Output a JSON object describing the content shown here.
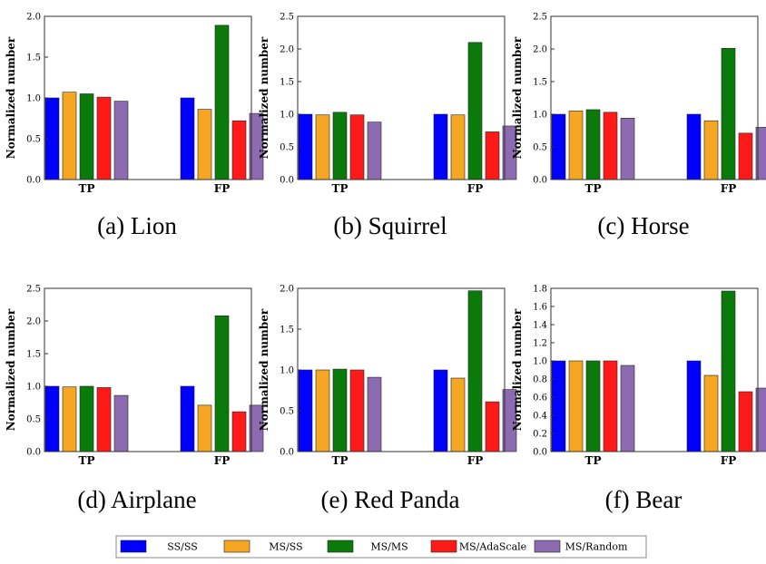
{
  "legend": {
    "items": [
      {
        "name": "SS/SS",
        "color": "#0000ff"
      },
      {
        "name": "MS/SS",
        "color": "#f5a623"
      },
      {
        "name": "MS/MS",
        "color": "#0a7a0a"
      },
      {
        "name": "MS/AdaScale",
        "color": "#ff1a1a"
      },
      {
        "name": "MS/Random",
        "color": "#8c6bb1"
      }
    ]
  },
  "chart_data": [
    {
      "type": "bar",
      "caption": "(a) Lion",
      "ylabel": "Normalized number",
      "categories": [
        "TP",
        "FP"
      ],
      "ylim": [
        0,
        2.0
      ],
      "yticks": [
        "0.0",
        "0.5",
        "1.0",
        "1.5",
        "2.0"
      ],
      "series": [
        {
          "name": "SS/SS",
          "values": [
            1.0,
            1.0
          ]
        },
        {
          "name": "MS/SS",
          "values": [
            1.07,
            0.86
          ]
        },
        {
          "name": "MS/MS",
          "values": [
            1.05,
            1.89
          ]
        },
        {
          "name": "MS/AdaScale",
          "values": [
            1.01,
            0.72
          ]
        },
        {
          "name": "MS/Random",
          "values": [
            0.96,
            0.81
          ]
        }
      ]
    },
    {
      "type": "bar",
      "caption": "(b) Squirrel",
      "ylabel": "Normalized number",
      "categories": [
        "TP",
        "FP"
      ],
      "ylim": [
        0,
        2.5
      ],
      "yticks": [
        "0.0",
        "0.5",
        "1.0",
        "1.5",
        "2.0",
        "2.5"
      ],
      "series": [
        {
          "name": "SS/SS",
          "values": [
            1.0,
            1.0
          ]
        },
        {
          "name": "MS/SS",
          "values": [
            0.99,
            0.99
          ]
        },
        {
          "name": "MS/MS",
          "values": [
            1.03,
            2.1
          ]
        },
        {
          "name": "MS/AdaScale",
          "values": [
            0.99,
            0.73
          ]
        },
        {
          "name": "MS/Random",
          "values": [
            0.88,
            0.82
          ]
        }
      ]
    },
    {
      "type": "bar",
      "caption": "(c) Horse",
      "ylabel": "Normalized number",
      "categories": [
        "TP",
        "FP"
      ],
      "ylim": [
        0,
        2.5
      ],
      "yticks": [
        "0.0",
        "0.5",
        "1.0",
        "1.5",
        "2.0",
        "2.5"
      ],
      "series": [
        {
          "name": "SS/SS",
          "values": [
            1.0,
            1.0
          ]
        },
        {
          "name": "MS/SS",
          "values": [
            1.05,
            0.9
          ]
        },
        {
          "name": "MS/MS",
          "values": [
            1.07,
            2.01
          ]
        },
        {
          "name": "MS/AdaScale",
          "values": [
            1.03,
            0.71
          ]
        },
        {
          "name": "MS/Random",
          "values": [
            0.94,
            0.8
          ]
        }
      ]
    },
    {
      "type": "bar",
      "caption": "(d) Airplane",
      "ylabel": "Normalized number",
      "categories": [
        "TP",
        "FP"
      ],
      "ylim": [
        0,
        2.5
      ],
      "yticks": [
        "0.0",
        "0.5",
        "1.0",
        "1.5",
        "2.0",
        "2.5"
      ],
      "series": [
        {
          "name": "SS/SS",
          "values": [
            1.0,
            1.0
          ]
        },
        {
          "name": "MS/SS",
          "values": [
            0.99,
            0.71
          ]
        },
        {
          "name": "MS/MS",
          "values": [
            1.0,
            2.08
          ]
        },
        {
          "name": "MS/AdaScale",
          "values": [
            0.98,
            0.61
          ]
        },
        {
          "name": "MS/Random",
          "values": [
            0.86,
            0.71
          ]
        }
      ]
    },
    {
      "type": "bar",
      "caption": "(e) Red Panda",
      "ylabel": "Normalized number",
      "categories": [
        "TP",
        "FP"
      ],
      "ylim": [
        0,
        2.0
      ],
      "yticks": [
        "0.0",
        "0.5",
        "1.0",
        "1.5",
        "2.0"
      ],
      "series": [
        {
          "name": "SS/SS",
          "values": [
            1.0,
            1.0
          ]
        },
        {
          "name": "MS/SS",
          "values": [
            1.0,
            0.9
          ]
        },
        {
          "name": "MS/MS",
          "values": [
            1.01,
            1.97
          ]
        },
        {
          "name": "MS/AdaScale",
          "values": [
            1.0,
            0.61
          ]
        },
        {
          "name": "MS/Random",
          "values": [
            0.91,
            0.76
          ]
        }
      ]
    },
    {
      "type": "bar",
      "caption": "(f) Bear",
      "ylabel": "Normalized number",
      "categories": [
        "TP",
        "FP"
      ],
      "ylim": [
        0,
        1.8
      ],
      "yticks": [
        "0.0",
        "0.2",
        "0.4",
        "0.6",
        "0.8",
        "1.0",
        "1.2",
        "1.4",
        "1.6",
        "1.8"
      ],
      "series": [
        {
          "name": "SS/SS",
          "values": [
            1.0,
            1.0
          ]
        },
        {
          "name": "MS/SS",
          "values": [
            1.0,
            0.84
          ]
        },
        {
          "name": "MS/MS",
          "values": [
            1.0,
            1.77
          ]
        },
        {
          "name": "MS/AdaScale",
          "values": [
            1.0,
            0.66
          ]
        },
        {
          "name": "MS/Random",
          "values": [
            0.95,
            0.7
          ]
        }
      ]
    }
  ]
}
